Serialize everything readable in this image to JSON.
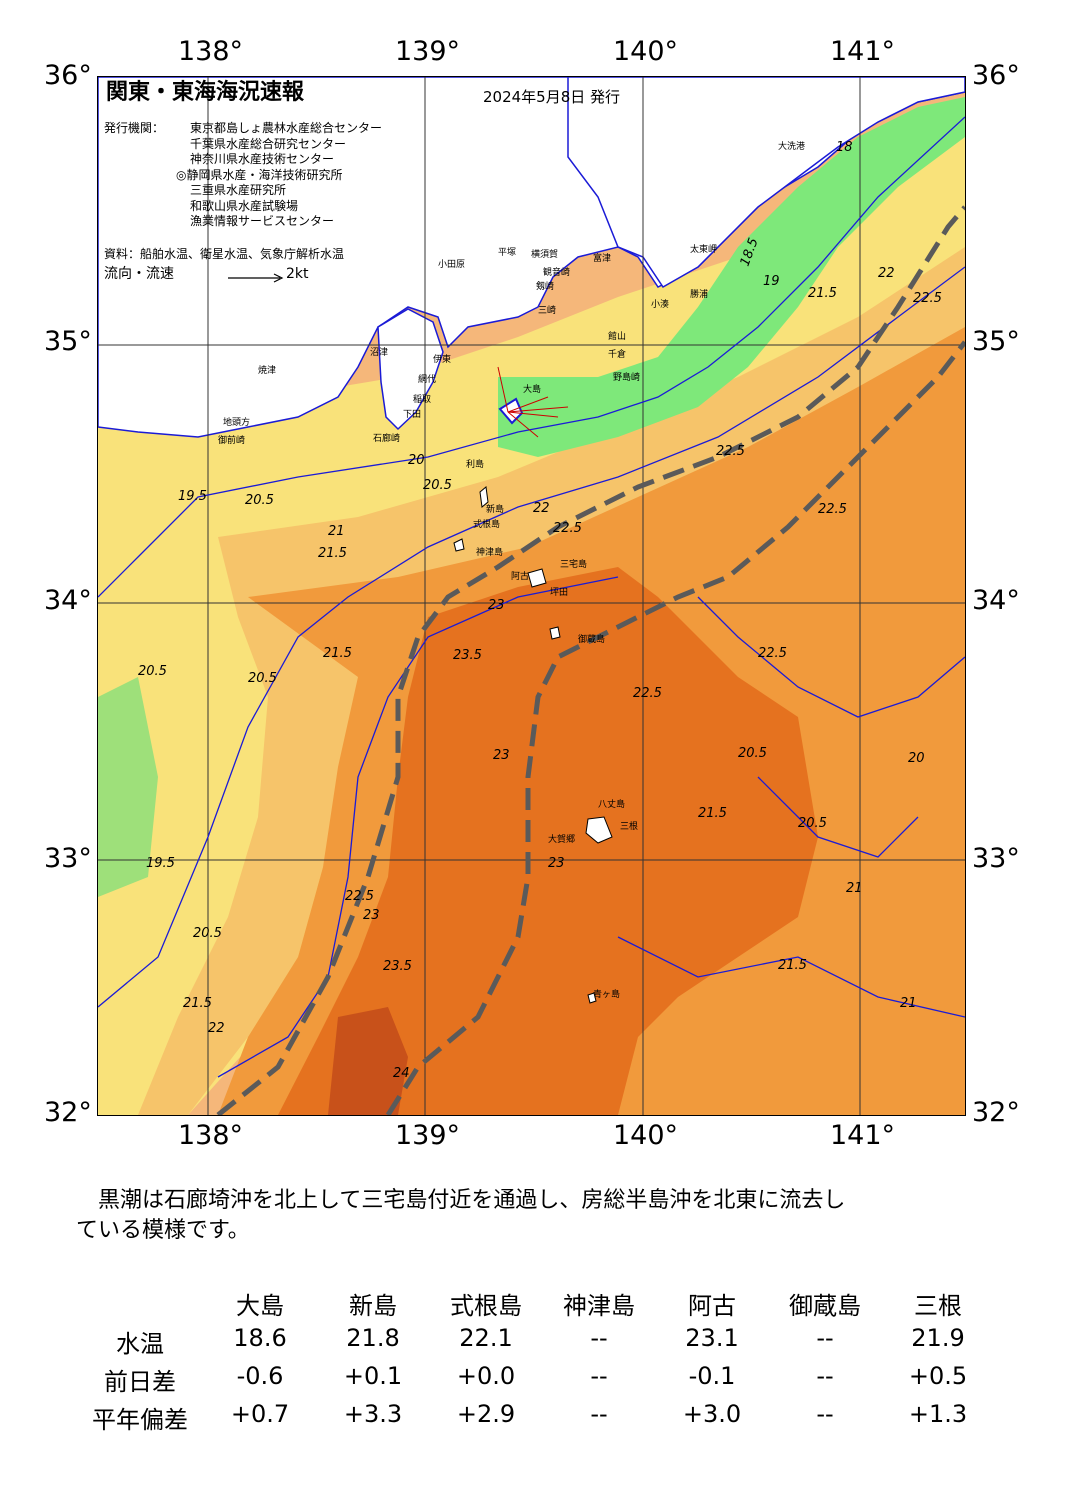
{
  "map": {
    "title": "関東・東海海況速報",
    "issue_date": "2024年5月8日 発行",
    "issuer_label": "発行機関：",
    "issuers": [
      "東京都島しょ農林水産総合センター",
      "千葉県水産総合研究センター",
      "神奈川県水産技術センター",
      "◎静岡県水産・海洋技術研究所",
      "三重県水産研究所",
      "和歌山県水産試験場",
      "漁業情報サービスセンター"
    ],
    "source": "資料：船舶水温、衛星水温、気象庁解析水温",
    "legend_label": "流向・流速",
    "legend_scale": "2kt",
    "lon_ticks": [
      "138°",
      "139°",
      "140°",
      "141°"
    ],
    "lat_ticks": [
      "36°",
      "35°",
      "34°",
      "33°",
      "32°"
    ],
    "colors": {
      "land": "#ffffff",
      "coast_water_cold": "#7ee87a",
      "water_yellow": "#f9e27a",
      "water_light_orange": "#f6c46a",
      "water_orange": "#f19a3c",
      "water_kuroshio": "#e5721f",
      "water_core": "#c8511a",
      "contour_blue": "#1b1bd6",
      "kuroshio_axis": "#5a5a5a"
    },
    "place_labels": [
      "大洗港",
      "太東岬",
      "勝浦",
      "野島崎",
      "小湊",
      "館山",
      "千倉",
      "富津",
      "横須賀",
      "観音崎",
      "剱崎",
      "三崎",
      "平塚",
      "小田原",
      "大島",
      "利島",
      "新島",
      "式根島",
      "神津島",
      "三宅島",
      "御蔵島",
      "阿古",
      "坪田",
      "八丈島",
      "三根",
      "大賀郷",
      "青ヶ島",
      "焼津",
      "御前崎",
      "地頭方",
      "石廊崎",
      "下田",
      "稲取",
      "伊東",
      "網代",
      "沼津"
    ],
    "isotherm_labels": [
      "18",
      "18.5",
      "19",
      "19.5",
      "20",
      "20.5",
      "21",
      "21.5",
      "22",
      "22.5",
      "23",
      "23.5",
      "24"
    ]
  },
  "summary": "黒潮は石廊埼沖を北上して三宅島付近を通過し、房総半島沖を北東に流去している模様です。",
  "summary_lines": [
    "黒潮は石廊埼沖を北上して三宅島付近を通過し、房総半島沖を北東に流去し",
    "ている模様です。"
  ],
  "table": {
    "stations": [
      "大島",
      "新島",
      "式根島",
      "神津島",
      "阿古",
      "御蔵島",
      "三根"
    ],
    "rows": [
      {
        "label": "水温",
        "values": [
          "18.6",
          "21.8",
          "22.1",
          "--",
          "23.1",
          "--",
          "21.9"
        ]
      },
      {
        "label": "前日差",
        "values": [
          "-0.6",
          "+0.1",
          "+0.0",
          "--",
          "-0.1",
          "--",
          "+0.5"
        ]
      },
      {
        "label": "平年偏差",
        "values": [
          "+0.7",
          "+3.3",
          "+2.9",
          "--",
          "+3.0",
          "--",
          "+1.3"
        ]
      }
    ]
  }
}
